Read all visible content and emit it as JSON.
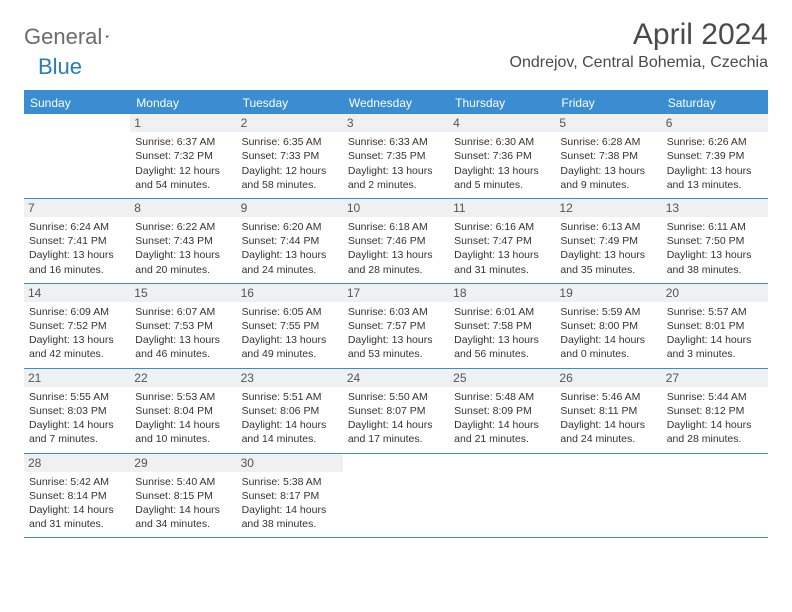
{
  "logo": {
    "part1": "General",
    "part2": "Blue"
  },
  "title": "April 2024",
  "location": "Ondrejov, Central Bohemia, Czechia",
  "colors": {
    "header_bg": "#3a8dd0",
    "header_text": "#ffffff",
    "daynum_bg": "#eef0f2",
    "border": "#3a8dd0",
    "logo_gray": "#6b6b6b",
    "logo_blue": "#2b7bbf"
  },
  "day_names": [
    "Sunday",
    "Monday",
    "Tuesday",
    "Wednesday",
    "Thursday",
    "Friday",
    "Saturday"
  ],
  "grid": {
    "columns": 7,
    "rows": 6,
    "start_offset": 1
  },
  "days": [
    {
      "n": 1,
      "sunrise": "6:37 AM",
      "sunset": "7:32 PM",
      "daylight": "12 hours and 54 minutes."
    },
    {
      "n": 2,
      "sunrise": "6:35 AM",
      "sunset": "7:33 PM",
      "daylight": "12 hours and 58 minutes."
    },
    {
      "n": 3,
      "sunrise": "6:33 AM",
      "sunset": "7:35 PM",
      "daylight": "13 hours and 2 minutes."
    },
    {
      "n": 4,
      "sunrise": "6:30 AM",
      "sunset": "7:36 PM",
      "daylight": "13 hours and 5 minutes."
    },
    {
      "n": 5,
      "sunrise": "6:28 AM",
      "sunset": "7:38 PM",
      "daylight": "13 hours and 9 minutes."
    },
    {
      "n": 6,
      "sunrise": "6:26 AM",
      "sunset": "7:39 PM",
      "daylight": "13 hours and 13 minutes."
    },
    {
      "n": 7,
      "sunrise": "6:24 AM",
      "sunset": "7:41 PM",
      "daylight": "13 hours and 16 minutes."
    },
    {
      "n": 8,
      "sunrise": "6:22 AM",
      "sunset": "7:43 PM",
      "daylight": "13 hours and 20 minutes."
    },
    {
      "n": 9,
      "sunrise": "6:20 AM",
      "sunset": "7:44 PM",
      "daylight": "13 hours and 24 minutes."
    },
    {
      "n": 10,
      "sunrise": "6:18 AM",
      "sunset": "7:46 PM",
      "daylight": "13 hours and 28 minutes."
    },
    {
      "n": 11,
      "sunrise": "6:16 AM",
      "sunset": "7:47 PM",
      "daylight": "13 hours and 31 minutes."
    },
    {
      "n": 12,
      "sunrise": "6:13 AM",
      "sunset": "7:49 PM",
      "daylight": "13 hours and 35 minutes."
    },
    {
      "n": 13,
      "sunrise": "6:11 AM",
      "sunset": "7:50 PM",
      "daylight": "13 hours and 38 minutes."
    },
    {
      "n": 14,
      "sunrise": "6:09 AM",
      "sunset": "7:52 PM",
      "daylight": "13 hours and 42 minutes."
    },
    {
      "n": 15,
      "sunrise": "6:07 AM",
      "sunset": "7:53 PM",
      "daylight": "13 hours and 46 minutes."
    },
    {
      "n": 16,
      "sunrise": "6:05 AM",
      "sunset": "7:55 PM",
      "daylight": "13 hours and 49 minutes."
    },
    {
      "n": 17,
      "sunrise": "6:03 AM",
      "sunset": "7:57 PM",
      "daylight": "13 hours and 53 minutes."
    },
    {
      "n": 18,
      "sunrise": "6:01 AM",
      "sunset": "7:58 PM",
      "daylight": "13 hours and 56 minutes."
    },
    {
      "n": 19,
      "sunrise": "5:59 AM",
      "sunset": "8:00 PM",
      "daylight": "14 hours and 0 minutes."
    },
    {
      "n": 20,
      "sunrise": "5:57 AM",
      "sunset": "8:01 PM",
      "daylight": "14 hours and 3 minutes."
    },
    {
      "n": 21,
      "sunrise": "5:55 AM",
      "sunset": "8:03 PM",
      "daylight": "14 hours and 7 minutes."
    },
    {
      "n": 22,
      "sunrise": "5:53 AM",
      "sunset": "8:04 PM",
      "daylight": "14 hours and 10 minutes."
    },
    {
      "n": 23,
      "sunrise": "5:51 AM",
      "sunset": "8:06 PM",
      "daylight": "14 hours and 14 minutes."
    },
    {
      "n": 24,
      "sunrise": "5:50 AM",
      "sunset": "8:07 PM",
      "daylight": "14 hours and 17 minutes."
    },
    {
      "n": 25,
      "sunrise": "5:48 AM",
      "sunset": "8:09 PM",
      "daylight": "14 hours and 21 minutes."
    },
    {
      "n": 26,
      "sunrise": "5:46 AM",
      "sunset": "8:11 PM",
      "daylight": "14 hours and 24 minutes."
    },
    {
      "n": 27,
      "sunrise": "5:44 AM",
      "sunset": "8:12 PM",
      "daylight": "14 hours and 28 minutes."
    },
    {
      "n": 28,
      "sunrise": "5:42 AM",
      "sunset": "8:14 PM",
      "daylight": "14 hours and 31 minutes."
    },
    {
      "n": 29,
      "sunrise": "5:40 AM",
      "sunset": "8:15 PM",
      "daylight": "14 hours and 34 minutes."
    },
    {
      "n": 30,
      "sunrise": "5:38 AM",
      "sunset": "8:17 PM",
      "daylight": "14 hours and 38 minutes."
    }
  ],
  "labels": {
    "sunrise": "Sunrise:",
    "sunset": "Sunset:",
    "daylight": "Daylight:"
  }
}
